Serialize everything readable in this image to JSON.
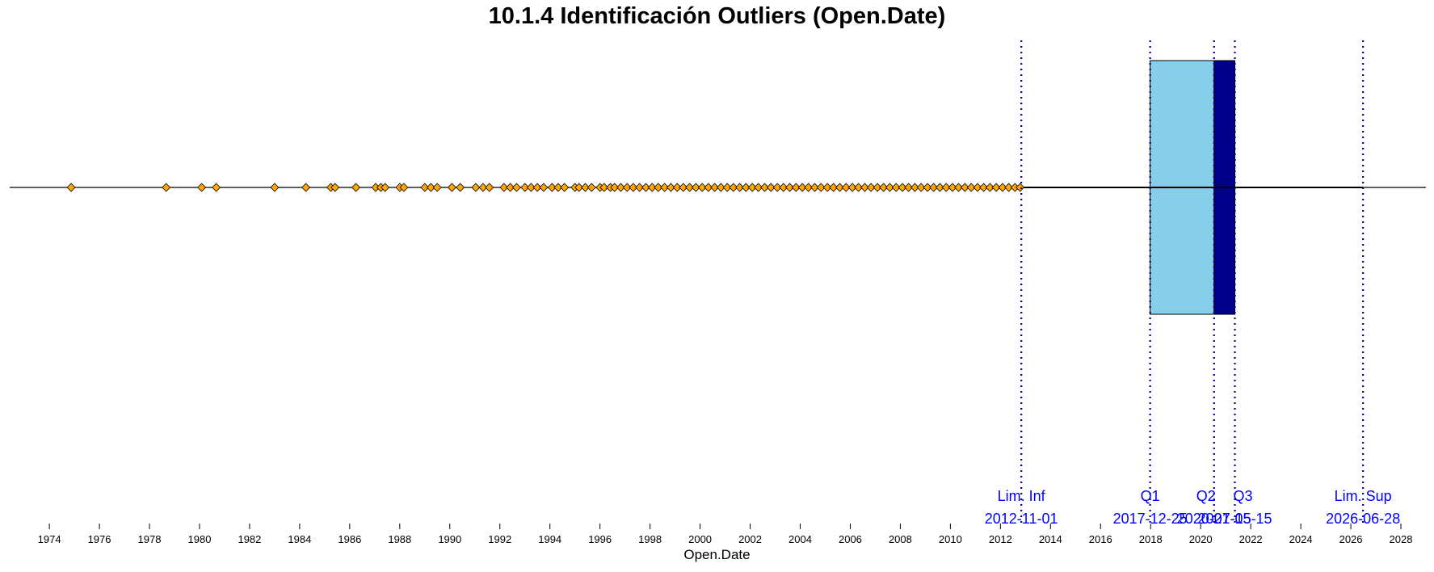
{
  "chart_data": {
    "type": "boxplot",
    "title": "10.1.4 Identificación Outliers (Open.Date)",
    "xlabel": "Open.Date",
    "ylabel": "",
    "x_axis": {
      "type": "date",
      "range": [
        "1972-06-01",
        "2029-01-01"
      ],
      "tick_labels": [
        "1974",
        "1976",
        "1978",
        "1980",
        "1982",
        "1984",
        "1986",
        "1988",
        "1990",
        "1992",
        "1994",
        "1996",
        "1998",
        "2000",
        "2002",
        "2004",
        "2006",
        "2008",
        "2010",
        "2012",
        "2014",
        "2016",
        "2018",
        "2020",
        "2022",
        "2024",
        "2026",
        "2028"
      ]
    },
    "grid": false,
    "legend": "none",
    "colors": {
      "lower_box": "#87ceeb",
      "upper_box": "#00008b",
      "outlier_fill": "#ffa500",
      "reference_lines": "#00008b",
      "reference_labels": "#0000ff"
    },
    "box": {
      "lower_whisker": "2012-11-01",
      "q1": "2017-12-25",
      "median": "2020-07-15",
      "q3": "2021-05-15",
      "upper_whisker": "2026-06-28"
    },
    "reference_lines": [
      {
        "name": "Lim. Inf",
        "date_label": "2012-11-01",
        "date": "2012-11-01"
      },
      {
        "name": "Q1",
        "date_label": "2017-12-25",
        "date": "2017-12-25"
      },
      {
        "name": "Q2",
        "date_label": "2020-07-15",
        "date": "2020-07-15"
      },
      {
        "name": "Q3",
        "date_label": "2021-05-15",
        "date": "2021-05-15"
      },
      {
        "name": "Lim. Sup",
        "date_label": "2026-06-28",
        "date": "2026-06-28"
      }
    ],
    "outliers": [
      "1974-11-15",
      "1978-09-01",
      "1980-02-01",
      "1980-09-01",
      "1983-01-01",
      "1984-04-01",
      "1985-04-01",
      "1985-06-01",
      "1986-04-01",
      "1987-01-15",
      "1987-04-01",
      "1987-06-01",
      "1988-01-01",
      "1988-03-01",
      "1989-01-01",
      "1989-04-01",
      "1989-07-01",
      "1990-02-01",
      "1990-06-01",
      "1991-01-15",
      "1991-05-01",
      "1991-08-01",
      "1992-03-01",
      "1992-06-01",
      "1992-09-01",
      "1993-01-01",
      "1993-04-01",
      "1993-07-01",
      "1993-10-01",
      "1994-02-01",
      "1994-05-01",
      "1994-08-01",
      "1995-01-01",
      "1995-03-01",
      "1995-06-01",
      "1995-09-01",
      "1996-01-01",
      "1996-03-01",
      "1996-06-01",
      "1996-08-01",
      "1996-11-01",
      "1997-02-01",
      "1997-05-01",
      "1997-08-01",
      "1997-11-01",
      "1998-02-01",
      "1998-05-01",
      "1998-08-01",
      "1998-11-01",
      "1999-02-01",
      "1999-05-01",
      "1999-08-01",
      "1999-11-01",
      "2000-02-01",
      "2000-05-01",
      "2000-08-01",
      "2000-11-01",
      "2001-02-01",
      "2001-05-01",
      "2001-08-01",
      "2001-11-01",
      "2002-02-01",
      "2002-05-01",
      "2002-08-01",
      "2002-11-01",
      "2003-02-01",
      "2003-05-01",
      "2003-08-01",
      "2003-11-01",
      "2004-02-01",
      "2004-05-01",
      "2004-08-01",
      "2004-11-01",
      "2005-02-01",
      "2005-05-01",
      "2005-08-01",
      "2005-11-01",
      "2006-02-01",
      "2006-05-01",
      "2006-08-01",
      "2006-11-01",
      "2007-02-01",
      "2007-05-01",
      "2007-08-01",
      "2007-11-01",
      "2008-02-01",
      "2008-05-01",
      "2008-08-01",
      "2008-11-01",
      "2009-02-01",
      "2009-05-01",
      "2009-08-01",
      "2009-11-01",
      "2010-02-01",
      "2010-05-01",
      "2010-08-01",
      "2010-11-01",
      "2011-02-01",
      "2011-05-01",
      "2011-08-01",
      "2011-11-01",
      "2012-02-01",
      "2012-05-01",
      "2012-08-01",
      "2012-10-15"
    ]
  }
}
